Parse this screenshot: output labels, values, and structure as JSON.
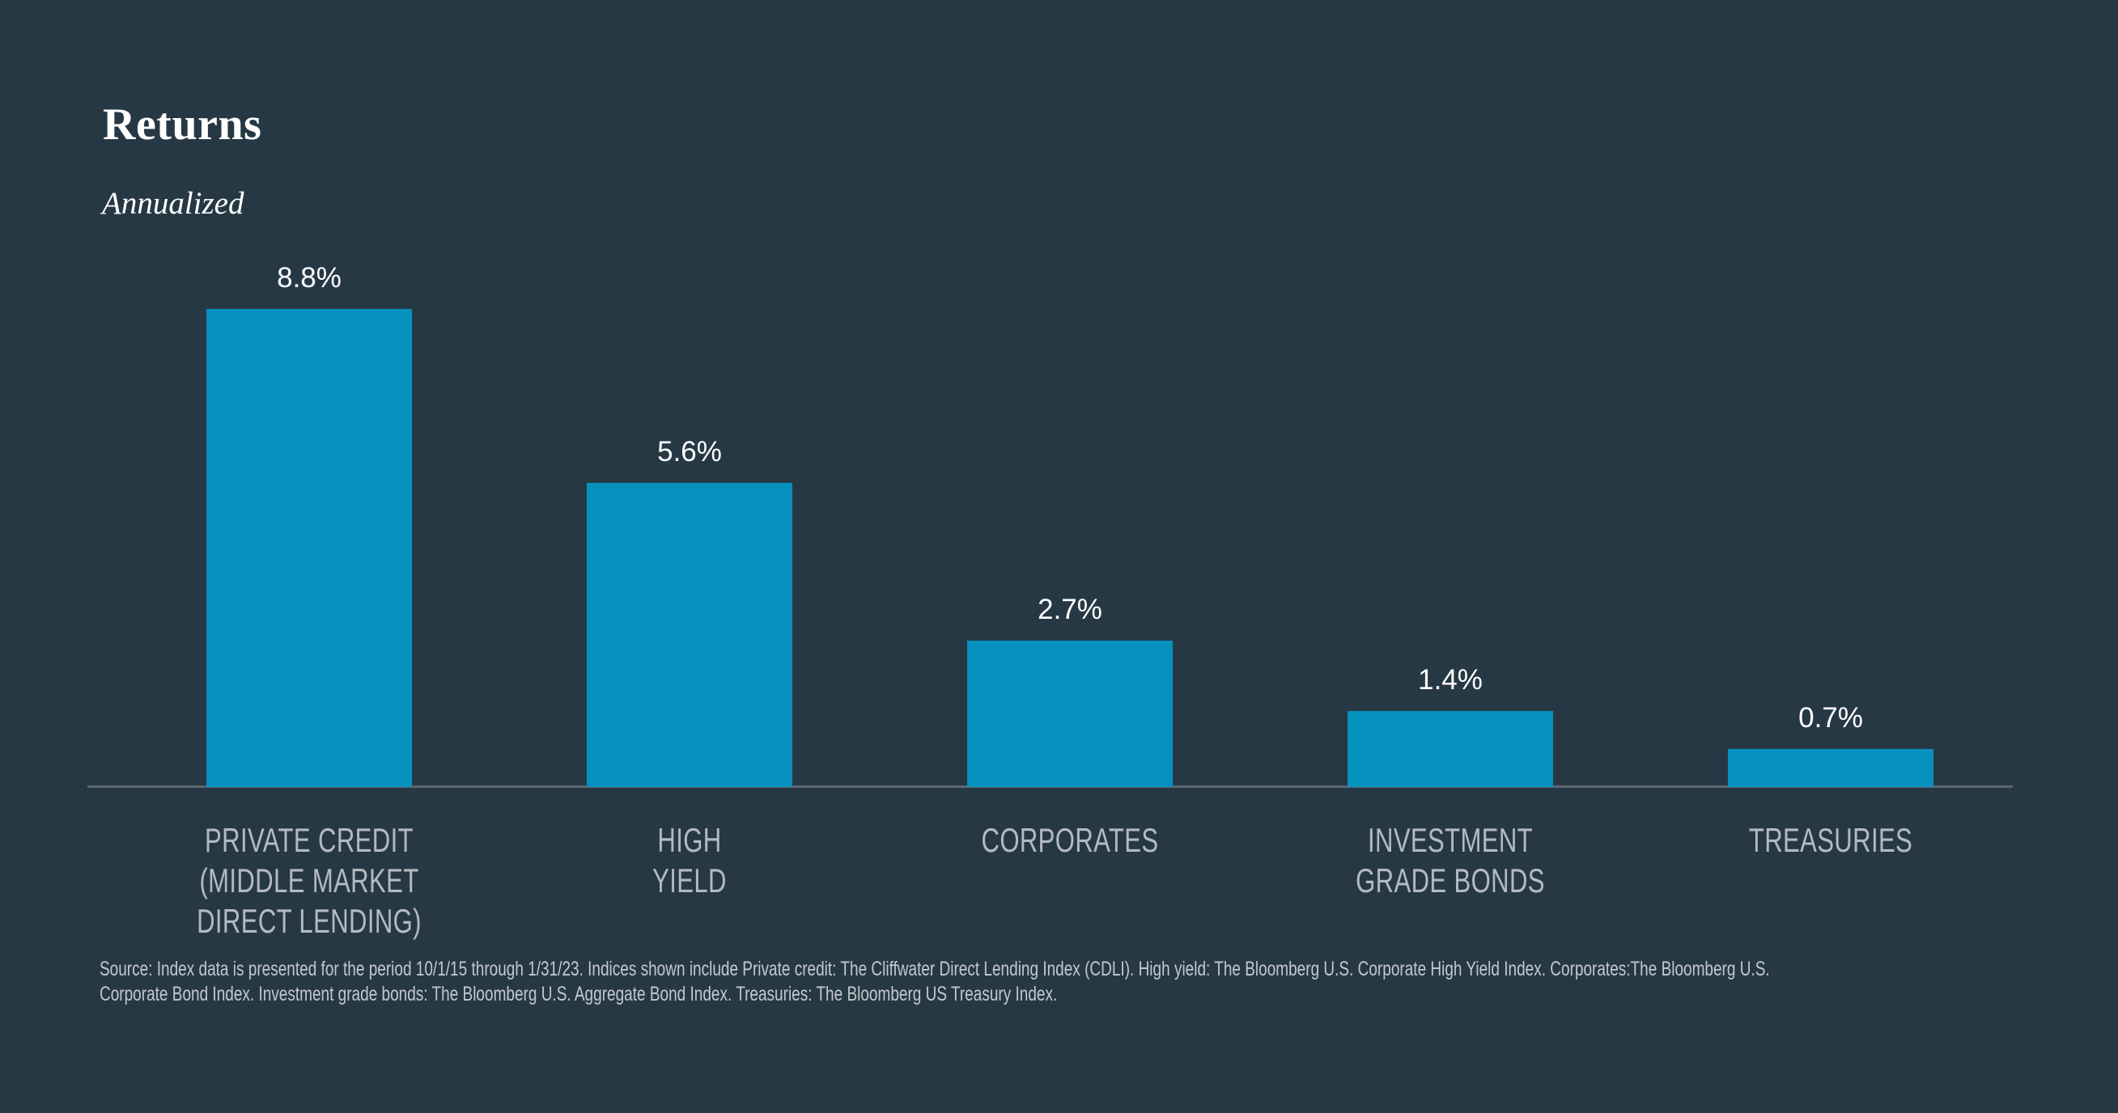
{
  "header": {
    "title": "Returns",
    "subtitle": "Annualized"
  },
  "chart_data": {
    "type": "bar",
    "title": "Returns",
    "subtitle": "Annualized",
    "unit": "percent",
    "categories": [
      "PRIVATE CREDIT (MIDDLE MARKET DIRECT LENDING)",
      "HIGH YIELD",
      "CORPORATES",
      "INVESTMENT GRADE BONDS",
      "TREASURIES"
    ],
    "category_lines": [
      [
        "PRIVATE CREDIT",
        "(MIDDLE MARKET",
        "DIRECT LENDING)"
      ],
      [
        "HIGH",
        "YIELD"
      ],
      [
        "CORPORATES"
      ],
      [
        "INVESTMENT",
        "GRADE BONDS"
      ],
      [
        "TREASURIES"
      ]
    ],
    "values": [
      8.8,
      5.6,
      2.7,
      1.4,
      0.7
    ],
    "value_labels": [
      "8.8%",
      "5.6%",
      "2.7%",
      "1.4%",
      "0.7%"
    ],
    "ylim": [
      0,
      8.8
    ],
    "grid": false,
    "legend": false,
    "bar_color": "#0691BF"
  },
  "footnote": {
    "text": "Source: Index data is presented for the period 10/1/15 through 1/31/23. Indices shown include Private credit: The Cliffwater Direct Lending Index (CDLI). High yield: The Bloomberg U.S. Corporate High Yield Index. Corporates:The Bloomberg U.S. Corporate Bond Index. Investment grade bonds: The Bloomberg U.S. Aggregate Bond Index. Treasuries: The Bloomberg US Treasury Index.",
    "lines": [
      "Source: Index data is presented for the period 10/1/15 through 1/31/23. Indices shown include Private credit: The Cliffwater Direct Lending Index (CDLI). High yield: The Bloomberg U.S. Corporate High Yield Index. Corporates:The Bloomberg U.S.",
      "Corporate Bond Index. Investment grade bonds: The Bloomberg U.S. Aggregate Bond Index. Treasuries: The Bloomberg US Treasury Index."
    ]
  },
  "colors": {
    "background": "#273845",
    "bar": "#0691BF",
    "axis_line": "#5C6771",
    "value_label": "#FFFFFF",
    "category_label": "#B3BAC0",
    "footnote": "#C3C8CC",
    "title": "#FFFFFF"
  }
}
